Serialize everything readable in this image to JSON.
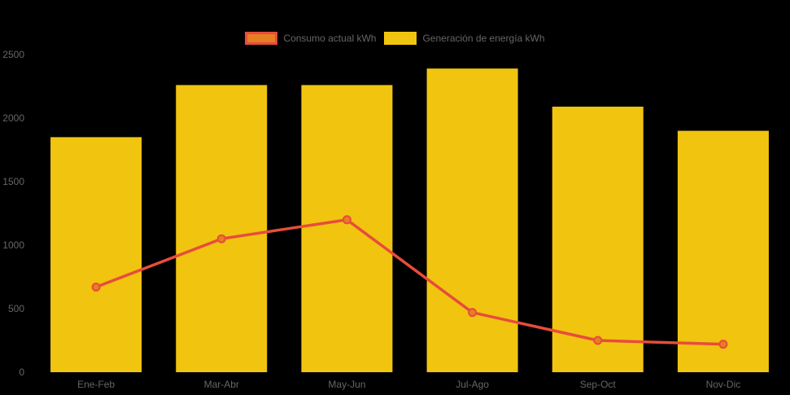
{
  "chart_data": {
    "type": "bar",
    "title": "",
    "xlabel": "",
    "ylabel": "",
    "categories": [
      "Ene-Feb",
      "Mar-Abr",
      "May-Jun",
      "Jul-Ago",
      "Sep-Oct",
      "Nov-Dic"
    ],
    "series": [
      {
        "name": "Consumo actual kWh",
        "type": "line",
        "values": [
          670,
          1050,
          1200,
          470,
          250,
          220
        ],
        "color": "#e74c3c",
        "point_color": "#e67e22"
      },
      {
        "name": "Generación de energía kWh",
        "type": "bar",
        "values": [
          1850,
          2260,
          2260,
          2390,
          2090,
          1900
        ],
        "color": "#f1c40f"
      }
    ],
    "ylim": [
      0,
      2500
    ],
    "ytick_step": 500,
    "yticks": [
      "0",
      "500",
      "1000",
      "1500",
      "2000",
      "2500"
    ],
    "grid": false,
    "legend_position": "top",
    "background_color": "#000000",
    "text_color": "#666666"
  }
}
